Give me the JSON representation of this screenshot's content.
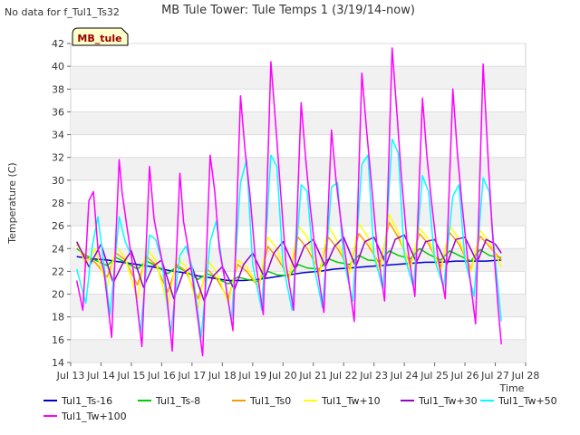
{
  "page": {
    "notice": "No data for f_Tul1_Ts32",
    "badge": "MB_tule"
  },
  "chart_data": {
    "type": "line",
    "title": "MB Tule Tower: Tule Temps 1 (3/19/14-now)",
    "xlabel": "Time",
    "ylabel": "Temperature (C)",
    "xlim": [
      13,
      28
    ],
    "ylim": [
      14,
      42
    ],
    "x_ticks": [
      13,
      14,
      15,
      16,
      17,
      18,
      19,
      20,
      21,
      22,
      23,
      24,
      25,
      26,
      27,
      28
    ],
    "x_tick_labels": [
      "Jul 13",
      "Jul 14",
      "Jul 15",
      "Jul 16",
      "Jul 17",
      "Jul 18",
      "Jul 19",
      "Jul 20",
      "Jul 21",
      "Jul 22",
      "Jul 23",
      "Jul 24",
      "Jul 25",
      "Jul 26",
      "Jul 27",
      "Jul 28"
    ],
    "y_ticks": [
      14,
      16,
      18,
      20,
      22,
      24,
      26,
      28,
      30,
      32,
      34,
      36,
      38,
      40,
      42
    ],
    "grid": true,
    "legend_position": "bottom",
    "series": [
      {
        "name": "Tul1_Ts-16",
        "color": "#0000cc",
        "x": [
          13.2,
          13.7,
          14.2,
          14.7,
          15.2,
          15.7,
          16.2,
          16.7,
          17.2,
          17.7,
          18.2,
          18.7,
          19.2,
          19.7,
          20.2,
          20.7,
          21.2,
          21.7,
          22.2,
          22.7,
          23.2,
          23.7,
          24.2,
          24.7,
          25.2,
          25.7,
          26.2,
          26.7,
          27.2
        ],
        "y": [
          23.3,
          23.1,
          23.0,
          22.8,
          22.6,
          22.4,
          22.1,
          21.9,
          21.6,
          21.4,
          21.2,
          21.2,
          21.3,
          21.5,
          21.7,
          21.9,
          22.0,
          22.2,
          22.3,
          22.4,
          22.5,
          22.6,
          22.7,
          22.8,
          22.8,
          22.9,
          22.9,
          22.9,
          23.0
        ]
      },
      {
        "name": "Tul1_Ts-8",
        "color": "#00cc00",
        "x": [
          13.2,
          13.5,
          13.8,
          14.2,
          14.5,
          14.8,
          15.2,
          15.5,
          15.8,
          16.2,
          16.5,
          16.8,
          17.2,
          17.5,
          17.8,
          18.2,
          18.5,
          18.8,
          19.2,
          19.5,
          19.8,
          20.2,
          20.5,
          20.8,
          21.2,
          21.5,
          21.8,
          22.2,
          22.5,
          22.8,
          23.2,
          23.5,
          23.8,
          24.2,
          24.5,
          24.8,
          25.2,
          25.5,
          25.8,
          26.2,
          26.5,
          26.8,
          27.2
        ],
        "y": [
          24.0,
          23.4,
          23.0,
          22.5,
          23.2,
          22.8,
          22.2,
          22.9,
          22.5,
          21.8,
          22.4,
          22.0,
          21.3,
          21.8,
          21.4,
          20.9,
          21.5,
          21.3,
          21.1,
          22.0,
          21.7,
          21.6,
          22.6,
          22.3,
          22.2,
          23.1,
          22.8,
          22.6,
          23.4,
          23.0,
          22.9,
          23.8,
          23.4,
          23.1,
          24.0,
          23.5,
          23.0,
          23.8,
          23.4,
          22.9,
          23.9,
          23.4,
          23.2
        ]
      },
      {
        "name": "Tul1_Ts0",
        "color": "#ff9900",
        "x": [
          13.2,
          13.5,
          13.8,
          14.2,
          14.5,
          14.8,
          15.2,
          15.5,
          15.8,
          16.2,
          16.5,
          16.8,
          17.2,
          17.5,
          17.8,
          18.2,
          18.5,
          18.8,
          19.2,
          19.5,
          19.8,
          20.2,
          20.5,
          20.8,
          21.2,
          21.5,
          21.8,
          22.2,
          22.5,
          22.8,
          23.2,
          23.5,
          23.8,
          24.2,
          24.5,
          24.8,
          25.2,
          25.5,
          25.8,
          26.2,
          26.5,
          26.8,
          27.2
        ],
        "y": [
          24.4,
          23.2,
          22.8,
          21.5,
          23.6,
          23.0,
          20.8,
          23.3,
          22.6,
          20.2,
          22.6,
          22.0,
          19.6,
          22.2,
          21.4,
          19.6,
          22.6,
          22.0,
          20.6,
          24.2,
          23.2,
          21.5,
          25.0,
          24.0,
          22.0,
          25.0,
          24.0,
          22.2,
          25.3,
          24.3,
          22.6,
          26.3,
          25.0,
          22.6,
          25.3,
          24.4,
          22.4,
          25.4,
          24.4,
          22.2,
          25.1,
          24.2,
          23.0
        ]
      },
      {
        "name": "Tul1_Tw+10",
        "color": "#ffff00",
        "x": [
          13.2,
          13.5,
          13.8,
          14.2,
          14.5,
          14.8,
          15.2,
          15.5,
          15.8,
          16.2,
          16.5,
          16.8,
          17.2,
          17.5,
          17.8,
          18.2,
          18.5,
          18.8,
          19.2,
          19.5,
          19.8,
          20.2,
          20.5,
          20.8,
          21.2,
          21.5,
          21.8,
          22.2,
          22.5,
          22.8,
          23.2,
          23.5,
          23.8,
          24.2,
          24.5,
          24.8,
          25.2,
          25.5,
          25.8,
          26.2,
          26.5,
          26.8,
          27.2
        ],
        "y": [
          24.6,
          22.6,
          24.0,
          20.6,
          24.2,
          23.2,
          19.6,
          24.0,
          23.0,
          19.0,
          23.2,
          22.4,
          18.8,
          23.0,
          22.0,
          19.2,
          23.0,
          22.4,
          20.6,
          25.0,
          24.0,
          21.2,
          26.0,
          25.0,
          21.6,
          26.0,
          24.6,
          21.8,
          26.2,
          25.0,
          22.0,
          27.0,
          25.4,
          22.2,
          25.8,
          24.8,
          22.0,
          26.0,
          24.8,
          22.0,
          25.6,
          24.6,
          22.4
        ]
      },
      {
        "name": "Tul1_Tw+30",
        "color": "#9900cc",
        "x": [
          13.2,
          13.6,
          14.0,
          14.4,
          14.7,
          15.0,
          15.4,
          15.7,
          16.0,
          16.4,
          16.7,
          17.0,
          17.4,
          17.7,
          18.0,
          18.4,
          18.7,
          19.0,
          19.4,
          19.7,
          20.0,
          20.4,
          20.7,
          21.0,
          21.4,
          21.7,
          22.0,
          22.4,
          22.7,
          23.0,
          23.4,
          23.7,
          24.0,
          24.4,
          24.7,
          25.0,
          25.4,
          25.7,
          26.0,
          26.4,
          26.7,
          27.0,
          27.2
        ],
        "y": [
          24.6,
          22.4,
          24.4,
          21.0,
          22.6,
          23.8,
          20.6,
          22.4,
          23.0,
          19.6,
          21.8,
          22.4,
          19.4,
          21.6,
          22.4,
          20.4,
          22.6,
          23.6,
          21.4,
          23.6,
          24.6,
          22.2,
          24.2,
          24.8,
          22.4,
          24.2,
          25.0,
          22.4,
          24.6,
          25.0,
          22.6,
          24.8,
          25.2,
          22.8,
          24.6,
          24.8,
          22.6,
          24.8,
          25.0,
          22.8,
          24.8,
          24.4,
          23.6
        ]
      },
      {
        "name": "Tul1_Tw+50",
        "color": "#00ffff",
        "x": [
          13.2,
          13.5,
          13.7,
          13.9,
          14.3,
          14.6,
          14.8,
          15.0,
          15.3,
          15.6,
          15.8,
          16.0,
          16.3,
          16.6,
          16.8,
          17.0,
          17.3,
          17.6,
          17.8,
          18.0,
          18.3,
          18.6,
          18.8,
          19.0,
          19.3,
          19.6,
          19.8,
          20.0,
          20.3,
          20.6,
          20.8,
          21.0,
          21.3,
          21.6,
          21.8,
          22.0,
          22.3,
          22.6,
          22.8,
          23.0,
          23.3,
          23.6,
          23.8,
          24.0,
          24.3,
          24.6,
          24.8,
          25.0,
          25.3,
          25.6,
          25.8,
          26.0,
          26.3,
          26.6,
          26.8,
          27.0,
          27.2
        ],
        "y": [
          22.2,
          19.2,
          24.0,
          26.8,
          18.2,
          26.8,
          24.6,
          23.4,
          16.6,
          25.2,
          24.8,
          23.0,
          16.6,
          23.4,
          24.2,
          22.4,
          16.2,
          24.6,
          26.4,
          22.6,
          17.6,
          29.8,
          31.8,
          22.6,
          18.6,
          32.2,
          31.2,
          22.6,
          18.6,
          29.6,
          29.0,
          22.8,
          18.8,
          29.4,
          29.8,
          23.0,
          19.4,
          31.4,
          32.2,
          23.4,
          20.4,
          33.6,
          32.4,
          23.4,
          20.6,
          30.4,
          29.0,
          23.0,
          20.6,
          28.6,
          29.6,
          23.0,
          19.8,
          30.2,
          29.0,
          23.0,
          17.6
        ]
      },
      {
        "name": "Tul1_Tw+100",
        "color": "#ff00ff",
        "x": [
          13.2,
          13.4,
          13.6,
          13.75,
          13.9,
          14.1,
          14.35,
          14.6,
          14.7,
          14.85,
          15.05,
          15.35,
          15.6,
          15.75,
          15.9,
          16.1,
          16.35,
          16.6,
          16.72,
          16.85,
          17.05,
          17.35,
          17.6,
          17.75,
          17.9,
          18.1,
          18.35,
          18.6,
          18.75,
          18.9,
          19.1,
          19.35,
          19.6,
          19.78,
          19.9,
          20.1,
          20.35,
          20.6,
          20.75,
          20.9,
          21.1,
          21.35,
          21.6,
          21.75,
          21.9,
          22.1,
          22.35,
          22.6,
          22.75,
          22.9,
          23.1,
          23.35,
          23.6,
          23.78,
          23.9,
          24.1,
          24.35,
          24.6,
          24.75,
          24.9,
          25.1,
          25.35,
          25.6,
          25.75,
          25.9,
          26.1,
          26.35,
          26.6,
          26.78,
          26.9,
          27.1,
          27.2
        ],
        "y": [
          21.2,
          18.6,
          28.2,
          29.0,
          24.0,
          22.0,
          16.2,
          31.8,
          28.8,
          26.0,
          22.4,
          15.4,
          31.2,
          26.6,
          24.4,
          21.8,
          15.0,
          30.6,
          26.4,
          24.4,
          20.8,
          14.6,
          32.2,
          29.0,
          24.0,
          21.0,
          16.8,
          37.4,
          32.6,
          29.0,
          22.8,
          18.2,
          40.4,
          34.2,
          29.8,
          22.6,
          18.6,
          36.8,
          31.8,
          27.6,
          22.8,
          18.4,
          34.4,
          30.0,
          26.6,
          22.6,
          17.6,
          39.4,
          34.6,
          30.2,
          24.2,
          19.4,
          41.6,
          35.0,
          30.4,
          24.2,
          19.8,
          37.2,
          32.0,
          28.0,
          23.4,
          19.6,
          38.0,
          32.4,
          28.0,
          22.8,
          17.4,
          40.2,
          31.0,
          25.6,
          18.6,
          15.6
        ]
      }
    ]
  }
}
